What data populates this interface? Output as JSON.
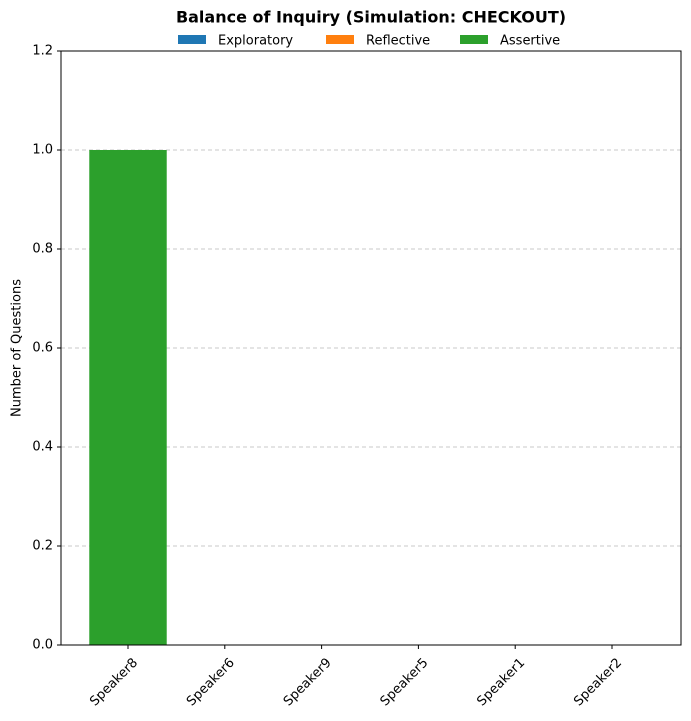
{
  "chart_data": {
    "type": "bar",
    "stacked": true,
    "title": "Balance of Inquiry (Simulation: CHECKOUT)",
    "y_label": "Number of Questions",
    "categories": [
      "Speaker8",
      "Speaker6",
      "Speaker9",
      "Speaker5",
      "Speaker1",
      "Speaker2"
    ],
    "series": [
      {
        "name": "Exploratory",
        "color": "#1f77b4",
        "values": [
          0,
          0,
          0,
          0,
          0,
          0
        ]
      },
      {
        "name": "Reflective",
        "color": "#ff7f0e",
        "values": [
          0,
          0,
          0,
          0,
          0,
          0
        ]
      },
      {
        "name": "Assertive",
        "color": "#2ca02c",
        "values": [
          1,
          0,
          0,
          0,
          0,
          0
        ]
      }
    ],
    "ylim": [
      0,
      1.2
    ],
    "yticks": [
      {
        "value": 0,
        "label": "0.0"
      },
      0.2,
      0.4,
      0.6,
      0.8,
      {
        "value": 1,
        "label": "1.0"
      },
      1.2
    ],
    "grid": true,
    "legend": "top"
  }
}
